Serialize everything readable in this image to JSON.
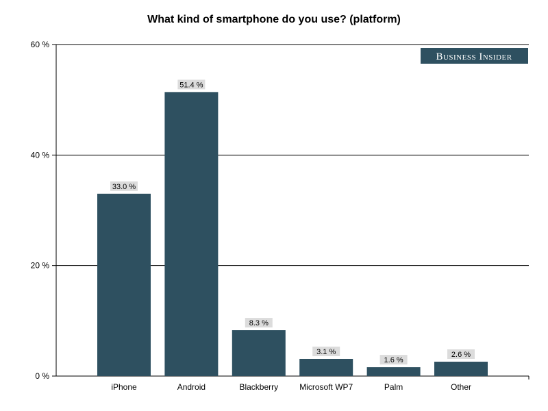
{
  "chart_data": {
    "type": "bar",
    "title": "What kind of smartphone do you use? (platform)",
    "xlabel": "",
    "ylabel": "",
    "categories": [
      "iPhone",
      "Android",
      "Blackberry",
      "Microsoft WP7",
      "Palm",
      "Other"
    ],
    "values": [
      33.0,
      51.4,
      8.3,
      3.1,
      1.6,
      2.6
    ],
    "data_labels": [
      "33.0 %",
      "51.4 %",
      "8.3 %",
      "3.1 %",
      "1.6 %",
      "2.6 %"
    ],
    "ylim": [
      0,
      60
    ],
    "yticks": [
      0,
      20,
      40,
      60
    ],
    "ytick_labels": [
      "0 %",
      "20 %",
      "40 %",
      "60 %"
    ],
    "grid": true,
    "bar_color": "#2e5060",
    "label_bg_color": "#dcdcdc"
  },
  "brand": {
    "logo_text": "Business Insider",
    "bg_color": "#2e5060"
  }
}
